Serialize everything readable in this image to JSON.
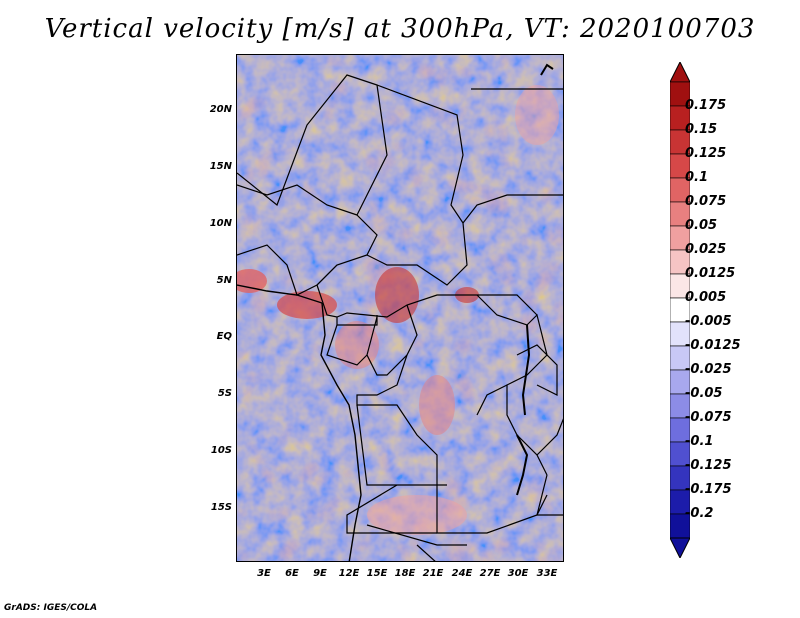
{
  "title": "Vertical velocity [m/s] at 300hPa, VT: 2020100703",
  "footer": "GrADS: IGES/COLA",
  "map": {
    "y_labels": [
      "20N",
      "15N",
      "10N",
      "5N",
      "EQ",
      "5S",
      "10S",
      "15S"
    ],
    "x_labels": [
      "3E",
      "6E",
      "9E",
      "12E",
      "15E",
      "18E",
      "21E",
      "24E",
      "27E",
      "30E",
      "33E"
    ]
  },
  "colorbar": {
    "levels": [
      "0.175",
      "0.15",
      "0.125",
      "0.1",
      "0.075",
      "0.05",
      "0.025",
      "0.0125",
      "0.005",
      "-0.005",
      "-0.0125",
      "-0.025",
      "-0.05",
      "-0.075",
      "-0.1",
      "-0.125",
      "-0.175",
      "-0.2"
    ],
    "colors": [
      "#a01010",
      "#b82020",
      "#c83434",
      "#d64848",
      "#e06464",
      "#e88080",
      "#f0a0a0",
      "#f6c4c4",
      "#fbe6e6",
      "#ffffff",
      "#e2e2fb",
      "#c8c8f6",
      "#a8a8ee",
      "#8c8ce6",
      "#6e6ede",
      "#5050d0",
      "#3434be",
      "#1c1caa",
      "#10109a"
    ],
    "top_color": "#a01010",
    "bottom_color": "#10109a"
  }
}
